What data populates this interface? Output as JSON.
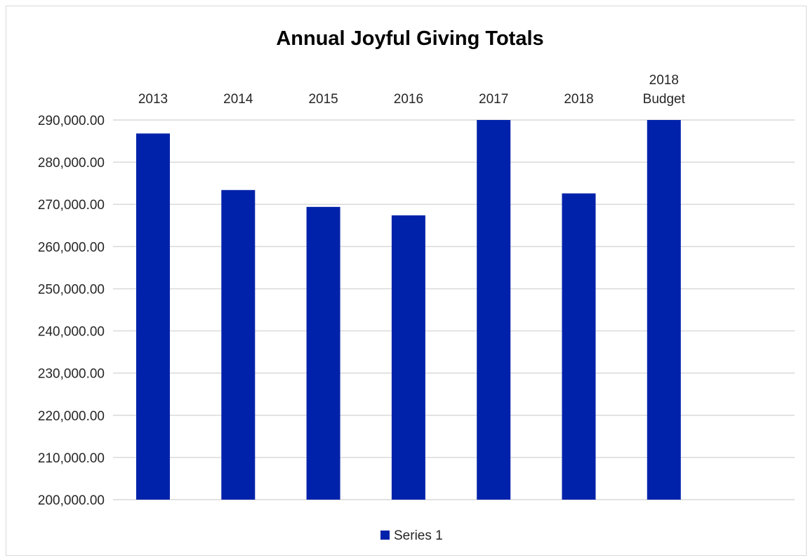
{
  "chart_data": {
    "type": "bar",
    "title": "Annual Joyful Giving Totals",
    "xlabel": "",
    "ylabel": "",
    "categories": [
      "2013",
      "2014",
      "2015",
      "2016",
      "2017",
      "2018",
      "2018 Budget"
    ],
    "series": [
      {
        "name": "Series 1",
        "color": "#0022AA",
        "values": [
          286800,
          273400,
          269400,
          267400,
          290000,
          272600,
          290000
        ]
      }
    ],
    "ylim": [
      200000,
      290000
    ],
    "yticks": [
      200000,
      210000,
      220000,
      230000,
      240000,
      250000,
      260000,
      270000,
      280000,
      290000
    ],
    "ytick_labels": [
      "200,000.00",
      "210,000.00",
      "220,000.00",
      "230,000.00",
      "240,000.00",
      "250,000.00",
      "260,000.00",
      "270,000.00",
      "280,000.00",
      "290,000.00"
    ],
    "grid": true,
    "category_labels_position": "top",
    "legend_position": "bottom"
  }
}
